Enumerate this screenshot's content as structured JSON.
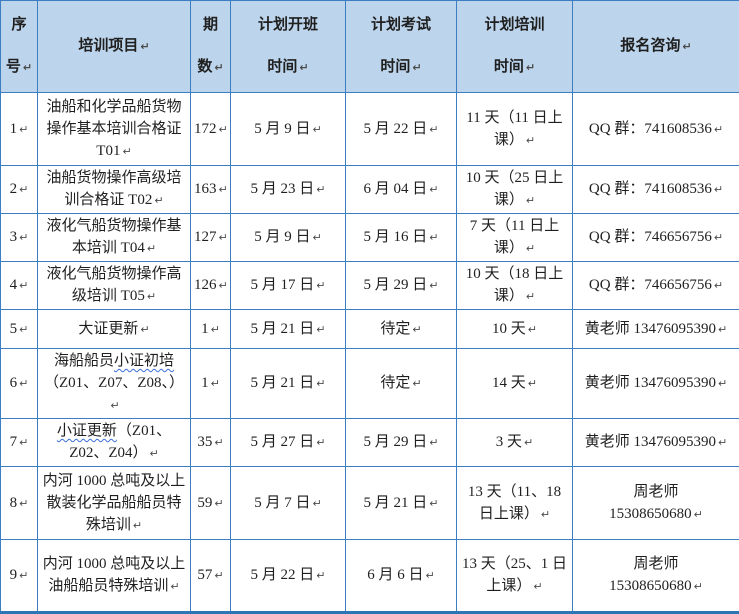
{
  "table": {
    "title_semantic": "船员培训计划表",
    "header": [
      "序\n号",
      "培训项目",
      "期\n数",
      "计划开班\n时间",
      "计划考试\n时间",
      "计划培训\n时间",
      "报名咨询"
    ],
    "rows": [
      {
        "no": "1",
        "project": [
          {
            "t": "油船和化学品船货物操作基本培训合格证 T01"
          }
        ],
        "sessions": "172",
        "start": "5 月 9 日",
        "exam": "5 月 22 日",
        "duration": "11 天（11 日上课）",
        "contact": "QQ 群：741608536"
      },
      {
        "no": "2",
        "project": [
          {
            "t": "油船货物操作高级培训合格证 T02"
          }
        ],
        "sessions": "163",
        "start": "5 月 23 日",
        "exam": "6 月 04 日",
        "duration": "10 天（25 日上课）",
        "contact": "QQ 群：741608536"
      },
      {
        "no": "3",
        "project": [
          {
            "t": "液化气船货物操作基本培训 T04"
          }
        ],
        "sessions": "127",
        "start": "5 月 9 日",
        "exam": "5 月 16 日",
        "duration": "7 天（11 日上课）",
        "contact": "QQ 群：746656756"
      },
      {
        "no": "4",
        "project": [
          {
            "t": "液化气船货物操作高级培训 T05"
          }
        ],
        "sessions": "126",
        "start": "5 月 17 日",
        "exam": "5 月 29 日",
        "duration": "10 天（18 日上课）",
        "contact": "QQ 群：746656756"
      },
      {
        "no": "5",
        "project": [
          {
            "t": "大证更新"
          }
        ],
        "sessions": "1",
        "start": "5 月 21 日",
        "exam": "待定",
        "duration": "10 天",
        "contact": "黄老师 13476095390"
      },
      {
        "no": "6",
        "project": [
          {
            "t": "海船船员"
          },
          {
            "t": "小证初培",
            "wavy": true
          },
          {
            "t": "（Z01、Z07、Z08、）"
          }
        ],
        "sessions": "1",
        "start": "5 月 21 日",
        "exam": "待定",
        "duration": "14 天",
        "contact": "黄老师 13476095390"
      },
      {
        "no": "7",
        "project": [
          {
            "t": "小证更新",
            "wavy": true
          },
          {
            "t": "（Z01、Z02、Z04）"
          }
        ],
        "sessions": "35",
        "start": "5 月 27 日",
        "exam": "5 月 29 日",
        "duration": "3 天",
        "contact": "黄老师 13476095390"
      },
      {
        "no": "8",
        "project": [
          {
            "t": "内河 1000 总吨及以上散装化学品船船员特殊培训"
          }
        ],
        "sessions": "59",
        "start": "5 月 7 日",
        "exam": "5 月 21 日",
        "duration": "13 天（11、18 日上课）",
        "contact": "周老师\n15308650680"
      },
      {
        "no": "9",
        "project": [
          {
            "t": "内河 1000 总吨及以上油船船员特殊培训"
          }
        ],
        "sessions": "57",
        "start": "5 月 22 日",
        "exam": "6 月 6 日",
        "duration": "13 天（25、1 日上课）",
        "contact": "周老师\n15308650680"
      }
    ]
  },
  "marks": {
    "paragraph_mark": "↵"
  },
  "colors": {
    "header_background": "#bdd5ec",
    "grid_border": "#3c7ec0",
    "bottom_border": "#2e75b6",
    "text": "#1f1f1f",
    "squiggle_underline": "#3a6fd8"
  }
}
